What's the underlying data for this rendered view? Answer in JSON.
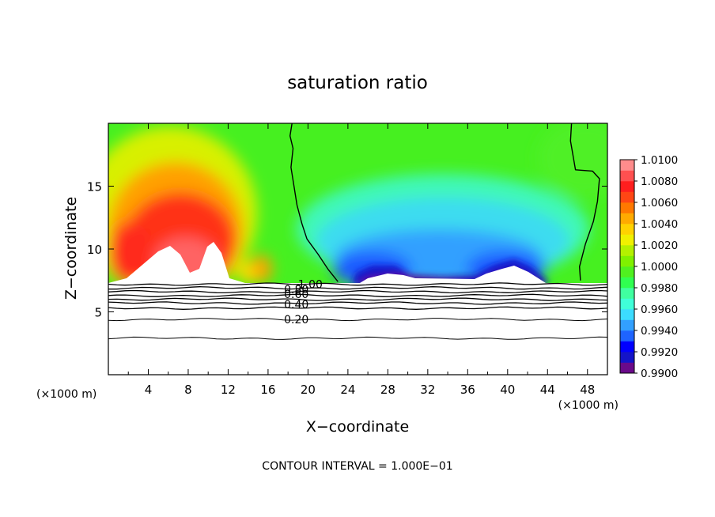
{
  "chart_data": {
    "type": "heatmap",
    "title": "saturation ratio",
    "xlabel": "X−coordinate",
    "ylabel": "Z−coordinate",
    "x_unit_label": "(×1000 m)",
    "y_unit_label": "(×1000 m)",
    "xlim": [
      0,
      50
    ],
    "ylim": [
      0,
      20
    ],
    "x_ticks": [
      4,
      8,
      12,
      16,
      20,
      24,
      28,
      32,
      36,
      40,
      44,
      48
    ],
    "y_ticks": [
      5,
      10,
      15
    ],
    "footer": "CONTOUR INTERVAL = 1.000E−01",
    "colorbar": {
      "levels": [
        0.99,
        0.991,
        0.992,
        0.993,
        0.994,
        0.995,
        0.996,
        0.997,
        0.998,
        0.999,
        1.0,
        1.001,
        1.002,
        1.003,
        1.004,
        1.005,
        1.006,
        1.007,
        1.008,
        1.009,
        1.01
      ],
      "labels": [
        "1.0100",
        "1.0080",
        "1.0060",
        "1.0040",
        "1.0020",
        "1.0000",
        "0.9980",
        "0.9960",
        "0.9940",
        "0.9920",
        "0.9900"
      ],
      "colors": [
        "#6a0a8a",
        "#1414c8",
        "#0000ff",
        "#1e64ff",
        "#32a0ff",
        "#3cdcff",
        "#40ffd8",
        "#40ffa0",
        "#30ff50",
        "#50f020",
        "#80f000",
        "#b4f000",
        "#f0f000",
        "#ffd200",
        "#ffaa00",
        "#ff7800",
        "#ff4614",
        "#ff1e1e",
        "#ff5050",
        "#ff8c8c"
      ]
    },
    "contour_labels": [
      {
        "text": "1.00",
        "x": 19.0,
        "y": 7.2
      },
      {
        "text": "0.80",
        "x": 17.6,
        "y": 6.8
      },
      {
        "text": "0.60",
        "x": 17.6,
        "y": 6.4
      },
      {
        "text": "0.40",
        "x": 17.6,
        "y": 5.6
      },
      {
        "text": "0.20",
        "x": 17.6,
        "y": 4.4
      }
    ],
    "contour_lines_lower": [
      {
        "y": 7.2
      },
      {
        "y": 6.9
      },
      {
        "y": 6.6
      },
      {
        "y": 6.3
      },
      {
        "y": 6.0
      },
      {
        "y": 5.7
      },
      {
        "y": 5.3
      },
      {
        "y": 4.4
      },
      {
        "y": 2.9
      }
    ],
    "unity_contours": [
      [
        [
          18.4,
          20
        ],
        [
          18.2,
          19.0
        ],
        [
          18.5,
          18.0
        ],
        [
          18.3,
          16.5
        ],
        [
          18.6,
          15.0
        ],
        [
          18.9,
          13.5
        ],
        [
          19.4,
          12.0
        ],
        [
          19.9,
          10.8
        ],
        [
          21.0,
          9.6
        ],
        [
          22.0,
          8.4
        ],
        [
          23.0,
          7.4
        ]
      ],
      [
        [
          46.4,
          20
        ],
        [
          46.3,
          18.6
        ],
        [
          46.8,
          16.3
        ],
        [
          48.5,
          16.2
        ],
        [
          49.2,
          15.6
        ],
        [
          49.0,
          13.8
        ],
        [
          48.6,
          12.2
        ],
        [
          47.8,
          10.4
        ],
        [
          47.2,
          8.6
        ],
        [
          47.3,
          7.5
        ]
      ]
    ],
    "terrain_surface_y": 7.3,
    "features": [
      {
        "name": "supersaturated-plume",
        "center_x": 7,
        "center_z": 11,
        "max_value": 1.01
      },
      {
        "name": "subsaturated-layer",
        "x_range": [
          24,
          46
        ],
        "z_range": [
          7.3,
          13
        ],
        "min_value": 0.99
      }
    ]
  }
}
